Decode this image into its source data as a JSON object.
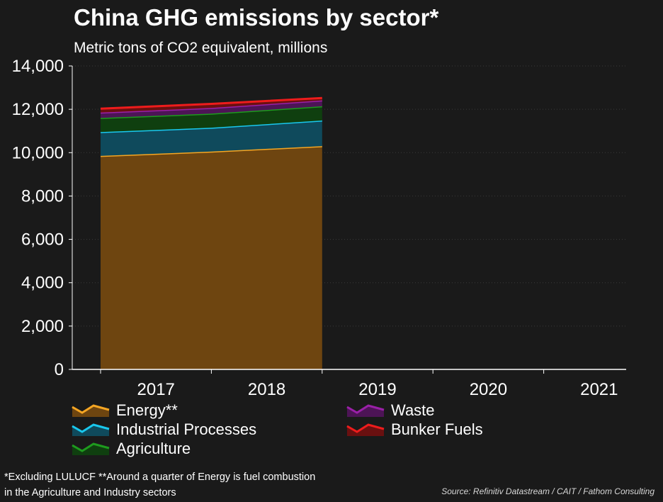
{
  "header": {
    "title": "China GHG emissions by sector*",
    "subtitle": "Metric tons of CO2 equivalent, millions"
  },
  "chart_data": {
    "type": "area",
    "title": "China GHG emissions by sector*",
    "subtitle": "Metric tons of CO2 equivalent, millions",
    "stacked": true,
    "x": [
      2017,
      2018,
      2019,
      2020,
      2021
    ],
    "x_tick_labels": [
      "2017",
      "2018",
      "2019",
      "2020",
      "2021"
    ],
    "y_tick_labels": [
      "0",
      "2,000",
      "4,000",
      "6,000",
      "8,000",
      "10,000",
      "12,000",
      "14,000"
    ],
    "ylim": [
      0,
      14000
    ],
    "series": [
      {
        "name": "Energy**",
        "color": "#f5a623",
        "fill": "#6e4510",
        "values": [
          9850,
          10050,
          10300,
          null,
          null
        ]
      },
      {
        "name": "Industrial Processes",
        "color": "#19c8ee",
        "fill": "#0f4a5c",
        "values": [
          1100,
          1100,
          1180,
          null,
          null
        ]
      },
      {
        "name": "Agriculture",
        "color": "#1e9b1e",
        "fill": "#0f3f0f",
        "values": [
          650,
          650,
          660,
          null,
          null
        ]
      },
      {
        "name": "Waste",
        "color": "#9a20a8",
        "fill": "#4d1456",
        "values": [
          250,
          260,
          270,
          null,
          null
        ]
      },
      {
        "name": "Bunker Fuels",
        "color": "#ee1c1c",
        "fill": "#6a1010",
        "values": [
          180,
          190,
          110,
          null,
          null
        ]
      }
    ],
    "legend_position": "bottom"
  },
  "legend": {
    "items": [
      {
        "label": "Energy**",
        "line": "#f5a623",
        "fill": "#6e4510"
      },
      {
        "label": "Industrial Processes",
        "line": "#19c8ee",
        "fill": "#0f4a5c"
      },
      {
        "label": "Agriculture",
        "line": "#1e9b1e",
        "fill": "#0f3f0f"
      },
      {
        "label": "Waste",
        "line": "#9a20a8",
        "fill": "#4d1456"
      },
      {
        "label": "Bunker Fuels",
        "line": "#ee1c1c",
        "fill": "#6a1010"
      }
    ]
  },
  "footnote": {
    "line1": "*Excluding LULUCF **Around a quarter of Energy is fuel combustion",
    "line2": "in the Agriculture and Industry sectors"
  },
  "source": "Source: Refinitiv Datastream / CAIT /  Fathom Consulting"
}
